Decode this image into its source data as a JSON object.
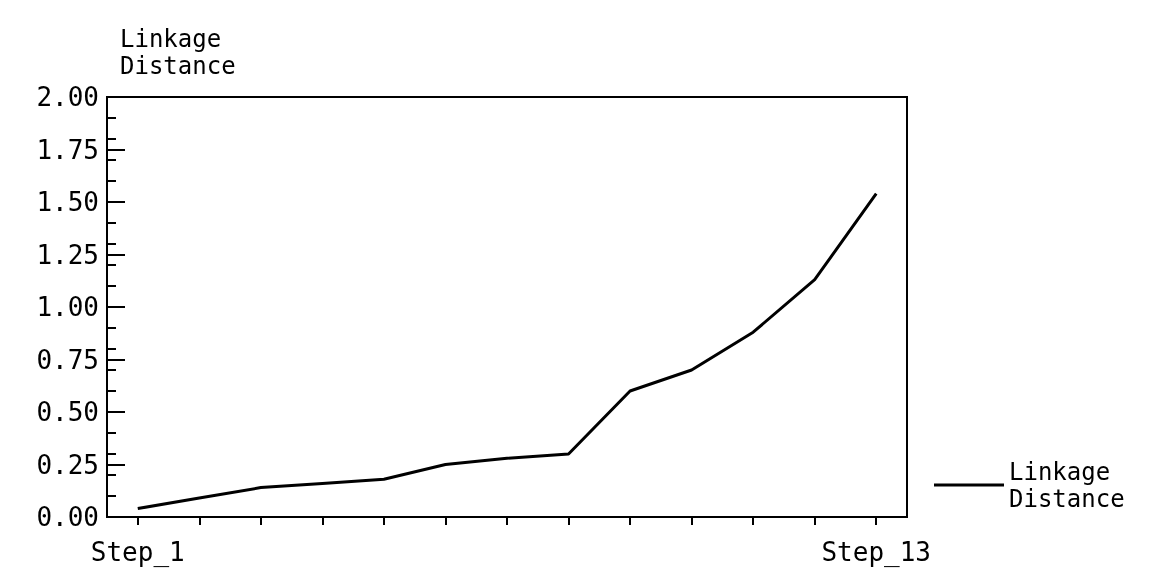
{
  "chart_data": {
    "type": "line",
    "ylabel": "Linkage Distance",
    "categories": [
      "Step_1",
      null,
      null,
      null,
      null,
      null,
      null,
      null,
      null,
      null,
      null,
      null,
      "Step_13"
    ],
    "series": [
      {
        "name": "Linkage Distance",
        "color": "#000000",
        "values": [
          0.04,
          0.09,
          0.14,
          0.16,
          0.18,
          0.25,
          0.28,
          0.3,
          0.6,
          0.7,
          0.88,
          1.13,
          1.54
        ]
      }
    ],
    "ylim": [
      0,
      2
    ],
    "yticks": [
      {
        "value": 0,
        "label": "0.00"
      },
      {
        "value": 0.25,
        "label": "0.25"
      },
      {
        "value": 0.5,
        "label": "0.50"
      },
      {
        "value": 0.75,
        "label": "0.75"
      },
      {
        "value": 1,
        "label": "1.00"
      },
      {
        "value": 1.25,
        "label": "1.25"
      },
      {
        "value": 1.5,
        "label": "1.50"
      },
      {
        "value": 1.75,
        "label": "1.75"
      },
      {
        "value": 2,
        "label": "2.00"
      }
    ],
    "grid": false,
    "legend": "right",
    "marker": "none",
    "line_style": "solid"
  }
}
